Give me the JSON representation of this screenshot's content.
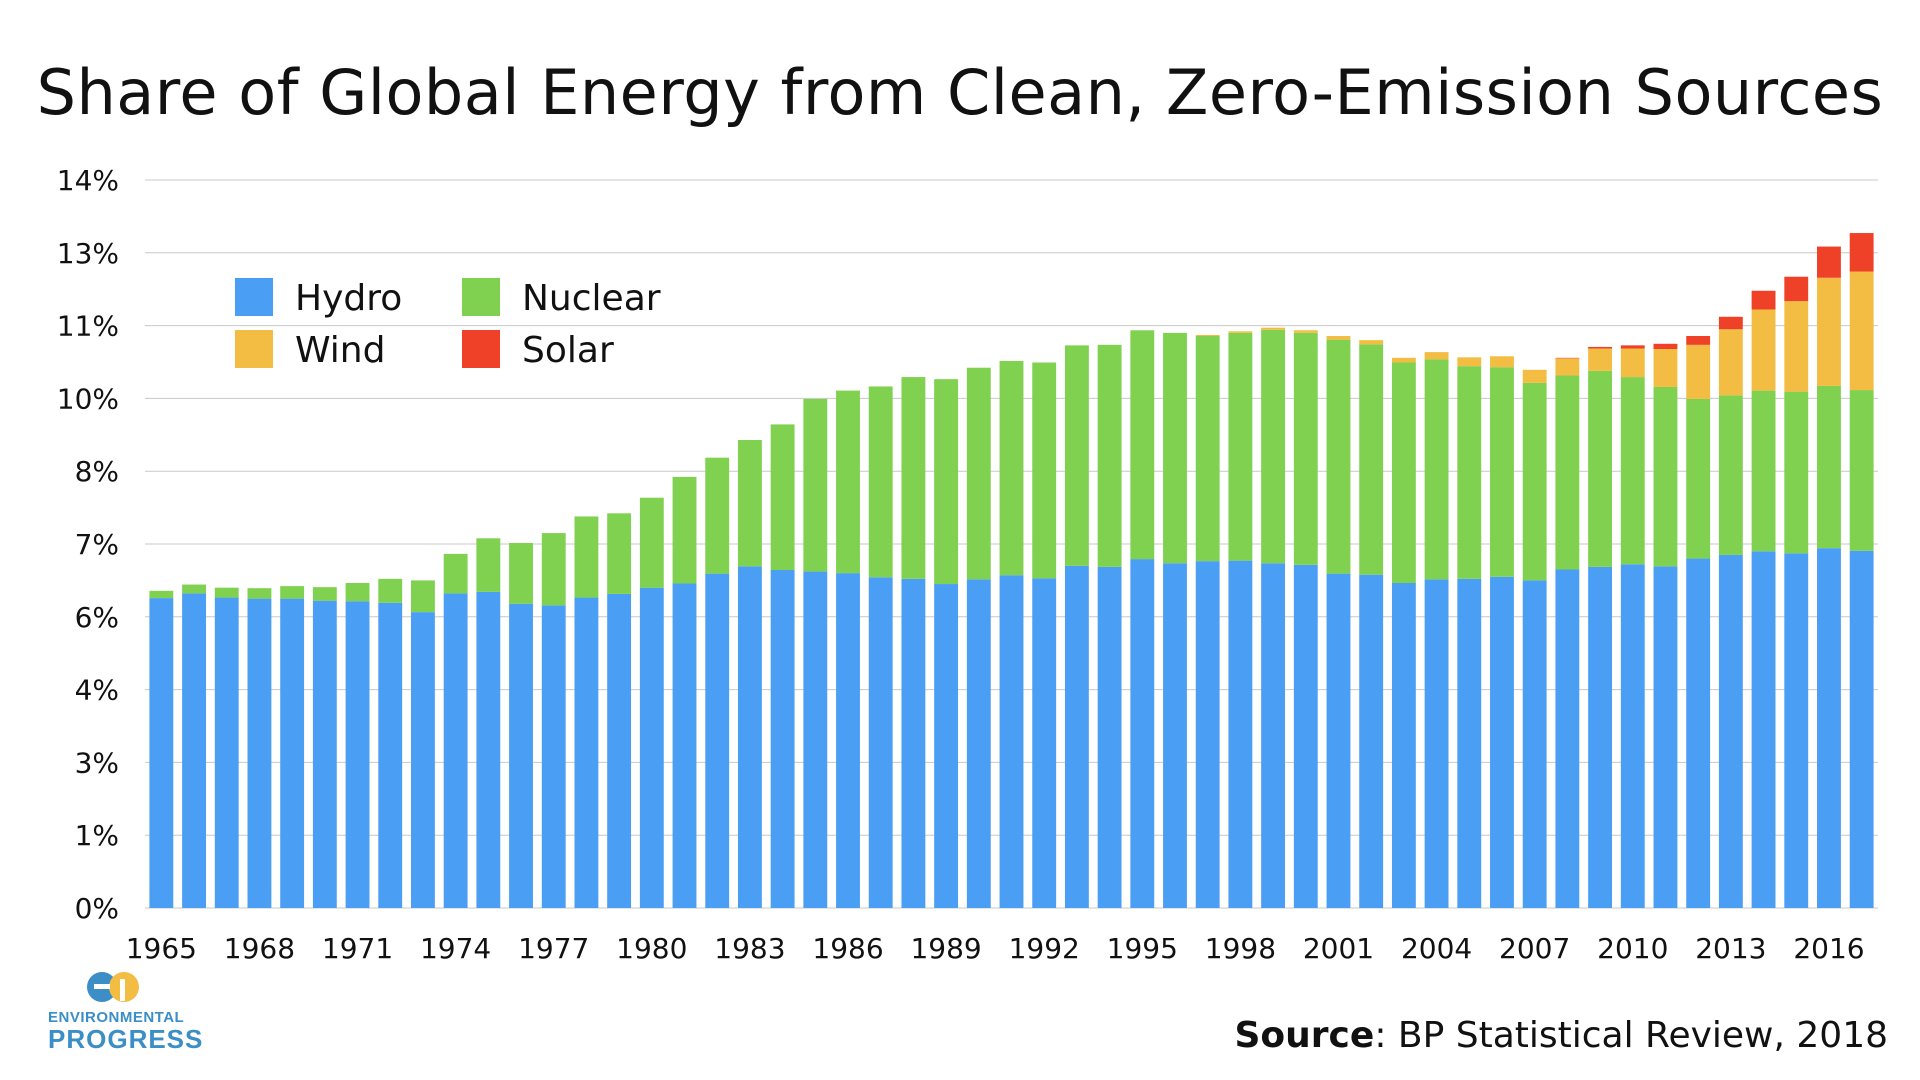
{
  "chart_data": {
    "type": "bar",
    "stacked": true,
    "title": "Share of Global Energy from Clean, Zero-Emission Sources",
    "xlabel": "",
    "ylabel": "",
    "ylim": [
      0,
      14
    ],
    "y_ticks": [
      {
        "value": 0,
        "label": "0%"
      },
      {
        "value": 1.4,
        "label": "1%"
      },
      {
        "value": 2.8,
        "label": "3%"
      },
      {
        "value": 4.2,
        "label": "4%"
      },
      {
        "value": 5.6,
        "label": "6%"
      },
      {
        "value": 7.0,
        "label": "7%"
      },
      {
        "value": 8.4,
        "label": "8%"
      },
      {
        "value": 9.8,
        "label": "10%"
      },
      {
        "value": 11.2,
        "label": "11%"
      },
      {
        "value": 12.6,
        "label": "13%"
      },
      {
        "value": 14.0,
        "label": "14%"
      }
    ],
    "x_tick_labels": [
      "1965",
      "1968",
      "1971",
      "1974",
      "1977",
      "1980",
      "1983",
      "1986",
      "1989",
      "1992",
      "1995",
      "1998",
      "2001",
      "2004",
      "2007",
      "2010",
      "2013",
      "2016"
    ],
    "categories": [
      "1965",
      "1966",
      "1967",
      "1968",
      "1969",
      "1970",
      "1971",
      "1972",
      "1973",
      "1974",
      "1975",
      "1976",
      "1977",
      "1978",
      "1979",
      "1980",
      "1981",
      "1982",
      "1983",
      "1984",
      "1985",
      "1986",
      "1987",
      "1988",
      "1989",
      "1990",
      "1991",
      "1992",
      "1993",
      "1994",
      "1995",
      "1996",
      "1997",
      "1998",
      "1999",
      "2000",
      "2001",
      "2002",
      "2003",
      "2004",
      "2005",
      "2006",
      "2007",
      "2008",
      "2009",
      "2010",
      "2011",
      "2012",
      "2013",
      "2014",
      "2015",
      "2016",
      "2017"
    ],
    "grid": true,
    "legend_position": "top-left",
    "series": [
      {
        "name": "Hydro",
        "color": "#4a9ff5",
        "values": [
          5.96,
          6.05,
          5.97,
          5.95,
          5.95,
          5.91,
          5.9,
          5.87,
          5.69,
          6.05,
          6.08,
          5.85,
          5.82,
          5.97,
          6.04,
          6.16,
          6.24,
          6.43,
          6.57,
          6.5,
          6.47,
          6.44,
          6.36,
          6.33,
          6.23,
          6.32,
          6.4,
          6.34,
          6.58,
          6.56,
          6.71,
          6.63,
          6.67,
          6.68,
          6.63,
          6.6,
          6.43,
          6.41,
          6.25,
          6.32,
          6.33,
          6.37,
          6.3,
          6.51,
          6.56,
          6.61,
          6.57,
          6.72,
          6.79,
          6.86,
          6.82,
          6.92,
          6.87
        ]
      },
      {
        "name": "Nuclear",
        "color": "#7fd14f",
        "values": [
          0.14,
          0.17,
          0.19,
          0.2,
          0.24,
          0.26,
          0.35,
          0.46,
          0.61,
          0.76,
          1.03,
          1.17,
          1.39,
          1.56,
          1.55,
          1.73,
          2.05,
          2.23,
          2.43,
          2.8,
          3.32,
          3.51,
          3.67,
          3.88,
          3.94,
          4.07,
          4.12,
          4.15,
          4.24,
          4.27,
          4.4,
          4.43,
          4.33,
          4.38,
          4.49,
          4.46,
          4.5,
          4.43,
          4.24,
          4.23,
          4.09,
          4.03,
          3.8,
          3.73,
          3.77,
          3.6,
          3.45,
          3.07,
          3.07,
          3.09,
          3.11,
          3.12,
          3.09
        ]
      },
      {
        "name": "Wind",
        "color": "#f3bd43",
        "values": [
          0,
          0,
          0,
          0,
          0,
          0,
          0,
          0,
          0,
          0,
          0,
          0,
          0,
          0,
          0,
          0,
          0,
          0,
          0,
          0,
          0,
          0,
          0,
          0,
          0,
          0,
          0,
          0,
          0,
          0,
          0,
          0,
          0.02,
          0.03,
          0.04,
          0.05,
          0.07,
          0.08,
          0.09,
          0.14,
          0.17,
          0.21,
          0.25,
          0.33,
          0.43,
          0.55,
          0.73,
          1.04,
          1.27,
          1.56,
          1.74,
          2.08,
          2.28
        ]
      },
      {
        "name": "Solar",
        "color": "#ee4127",
        "values": [
          0,
          0,
          0,
          0,
          0,
          0,
          0,
          0,
          0,
          0,
          0,
          0,
          0,
          0,
          0,
          0,
          0,
          0,
          0,
          0,
          0,
          0,
          0,
          0,
          0,
          0,
          0,
          0,
          0,
          0,
          0,
          0,
          0,
          0,
          0,
          0,
          0,
          0,
          0,
          0,
          0,
          0,
          0,
          0.01,
          0.03,
          0.06,
          0.1,
          0.17,
          0.24,
          0.36,
          0.47,
          0.6,
          0.74
        ]
      }
    ]
  },
  "legend": {
    "items": [
      {
        "label": "Hydro",
        "color": "#4a9ff5"
      },
      {
        "label": "Nuclear",
        "color": "#7fd14f"
      },
      {
        "label": "Wind",
        "color": "#f3bd43"
      },
      {
        "label": "Solar",
        "color": "#ee4127"
      }
    ]
  },
  "footer": {
    "source_label": "Source",
    "source_text": ": BP Statistical Review, 2018"
  },
  "logo": {
    "line1": "ENVIRONMENTAL",
    "line2": "PROGRESS",
    "color": "#3b8ec6"
  }
}
